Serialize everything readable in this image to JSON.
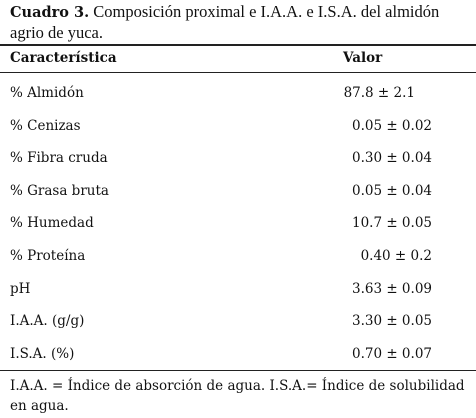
{
  "caption": {
    "label": "Cuadro 3.",
    "text": "Composición proximal e I.A.A. e I.S.A. del almidón agrio de yuca."
  },
  "table": {
    "header": [
      "Característica",
      "Valor"
    ],
    "rows": [
      [
        "% Almidón",
        "87.8 ± 2.1"
      ],
      [
        "% Cenizas",
        "0.05 ± 0.02"
      ],
      [
        "% Fibra cruda",
        "0.30 ± 0.04"
      ],
      [
        "% Grasa bruta",
        "0.05 ± 0.04"
      ],
      [
        "% Humedad",
        "10.7 ± 0.05"
      ],
      [
        "% Proteína",
        "0.40 ± 0.2"
      ],
      [
        "pH",
        "3.63 ± 0.09"
      ],
      [
        "I.A.A. (g/g)",
        "3.30 ± 0.05"
      ],
      [
        "I.S.A. (%)",
        "0.70 ± 0.07"
      ]
    ]
  },
  "footnote": "I.A.A. = Índice de absorción de agua. I.S.A.= Índice de solubilidad en agua."
}
